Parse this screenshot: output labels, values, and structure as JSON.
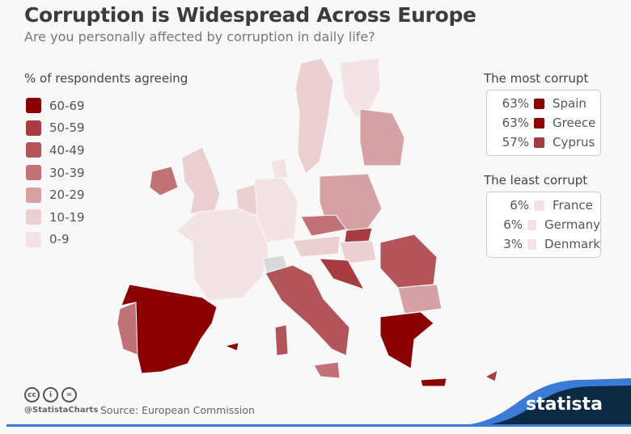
{
  "header": {
    "title": "Corruption is Widespread Across Europe",
    "subtitle": "Are you personally affected by corruption in daily life?"
  },
  "legend": {
    "title": "% of respondents agreeing",
    "items": [
      {
        "label": "60-69",
        "color": "#8b0000"
      },
      {
        "label": "50-59",
        "color": "#a63c42"
      },
      {
        "label": "40-49",
        "color": "#b3545a"
      },
      {
        "label": "30-39",
        "color": "#c07277"
      },
      {
        "label": "20-29",
        "color": "#d6a1a4"
      },
      {
        "label": "10-19",
        "color": "#ebcfd1"
      },
      {
        "label": "0-9",
        "color": "#f3e3e4"
      }
    ]
  },
  "most_corrupt": {
    "title": "The most corrupt",
    "items": [
      {
        "pct": "63%",
        "country": "Spain",
        "color": "#8b0000"
      },
      {
        "pct": "63%",
        "country": "Greece",
        "color": "#8b0000"
      },
      {
        "pct": "57%",
        "country": "Cyprus",
        "color": "#a63c42"
      }
    ]
  },
  "least_corrupt": {
    "title": "The least corrupt",
    "items": [
      {
        "pct": "6%",
        "country": "France",
        "color": "#f3e3e4"
      },
      {
        "pct": "6%",
        "country": "Germany",
        "color": "#f3e3e4"
      },
      {
        "pct": "3%",
        "country": "Denmark",
        "color": "#f3e3e4"
      }
    ]
  },
  "footer": {
    "handle": "@StatistaCharts",
    "source": "Source: European Commission",
    "brand": "statista",
    "cc_icons": [
      "cc",
      "i",
      "="
    ]
  },
  "colors": {
    "navy": "#0d2a45",
    "blue": "#3a7bd5",
    "no_data": "#d9d9d9"
  }
}
